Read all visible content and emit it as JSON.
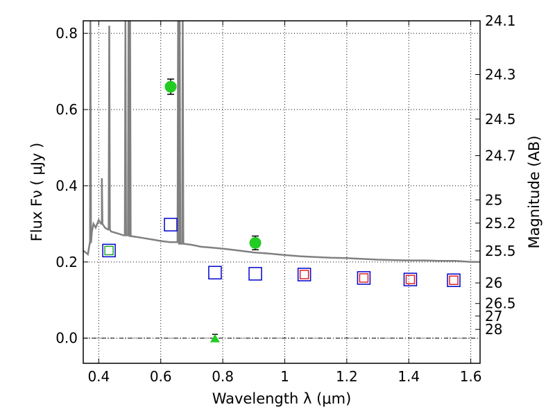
{
  "chart_data": {
    "type": "scatter",
    "xlabel": "Wavelength  λ (μm)",
    "ylabel": "Flux  Fν  ( μJy )",
    "ylabel_right": "Magnitude (AB)",
    "xlim": [
      0.35,
      1.63
    ],
    "ylim": [
      -0.066,
      0.833
    ],
    "x_ticks": [
      0.4,
      0.6,
      0.8,
      1.0,
      1.2,
      1.4,
      1.6
    ],
    "x_tick_labels": [
      "0.4",
      "0.6",
      "0.8",
      "1",
      "1.2",
      "1.4",
      "1.6"
    ],
    "y_ticks": [
      0.0,
      0.2,
      0.4,
      0.6,
      0.8
    ],
    "y_tick_labels": [
      "0.0",
      "0.2",
      "0.4",
      "0.6",
      "0.8"
    ],
    "right_ticks": [
      {
        "label": "24.1",
        "flux": 0.833
      },
      {
        "label": "24.3",
        "flux": 0.692
      },
      {
        "label": "24.5",
        "flux": 0.575
      },
      {
        "label": "24.7",
        "flux": 0.479
      },
      {
        "label": "25",
        "flux": 0.363
      },
      {
        "label": "25.2",
        "flux": 0.302
      },
      {
        "label": "25.5",
        "flux": 0.229
      },
      {
        "label": "26",
        "flux": 0.145
      },
      {
        "label": "26.5",
        "flux": 0.091
      },
      {
        "label": "27",
        "flux": 0.058
      },
      {
        "label": "28",
        "flux": 0.023
      }
    ],
    "grid": true,
    "colors": {
      "model": "#808080",
      "observed": "#22cc22",
      "model_photometry": "#0000cc",
      "inner_box": "#dd2222",
      "inner_box_green": "#22aa22"
    },
    "model_spectrum": {
      "x": [
        0.35,
        0.365,
        0.372,
        0.378,
        0.383,
        0.39,
        0.4,
        0.41,
        0.42,
        0.43,
        0.44,
        0.46,
        0.48,
        0.5,
        0.52,
        0.55,
        0.58,
        0.6,
        0.63,
        0.66,
        0.7,
        0.73,
        0.76,
        0.8,
        0.85,
        0.9,
        0.95,
        1.0,
        1.05,
        1.1,
        1.15,
        1.2,
        1.25,
        1.3,
        1.35,
        1.4,
        1.45,
        1.5,
        1.55,
        1.6,
        1.63
      ],
      "y": [
        0.23,
        0.22,
        0.25,
        0.28,
        0.3,
        0.29,
        0.31,
        0.3,
        0.29,
        0.285,
        0.28,
        0.275,
        0.27,
        0.268,
        0.266,
        0.262,
        0.258,
        0.255,
        0.252,
        0.248,
        0.245,
        0.24,
        0.238,
        0.235,
        0.23,
        0.225,
        0.222,
        0.218,
        0.215,
        0.213,
        0.211,
        0.21,
        0.208,
        0.206,
        0.205,
        0.204,
        0.204,
        0.203,
        0.203,
        0.2,
        0.2
      ],
      "emission_lines": [
        {
          "x": 0.373,
          "peak": 0.85
        },
        {
          "x": 0.41,
          "peak": 0.42
        },
        {
          "x": 0.434,
          "peak": 0.82
        },
        {
          "x": 0.486,
          "peak": 0.85
        },
        {
          "x": 0.496,
          "peak": 0.85
        },
        {
          "x": 0.501,
          "peak": 0.85
        },
        {
          "x": 0.656,
          "peak": 0.85
        },
        {
          "x": 0.661,
          "peak": 0.85
        },
        {
          "x": 0.671,
          "peak": 0.85
        }
      ]
    },
    "observed_points": [
      {
        "x": 0.632,
        "y": 0.66,
        "err": 0.02
      },
      {
        "x": 0.905,
        "y": 0.25,
        "err": 0.018
      }
    ],
    "upper_limits": [
      {
        "x": 0.775,
        "y": 0.0,
        "err": 0.01
      }
    ],
    "model_photometry": [
      {
        "x": 0.433,
        "y": 0.23,
        "inner": "green"
      },
      {
        "x": 0.632,
        "y": 0.298,
        "inner": "none"
      },
      {
        "x": 0.775,
        "y": 0.172,
        "inner": "none"
      },
      {
        "x": 0.905,
        "y": 0.169,
        "inner": "none"
      },
      {
        "x": 1.063,
        "y": 0.167,
        "inner": "red"
      },
      {
        "x": 1.255,
        "y": 0.158,
        "inner": "red"
      },
      {
        "x": 1.405,
        "y": 0.154,
        "inner": "red"
      },
      {
        "x": 1.545,
        "y": 0.152,
        "inner": "red"
      }
    ]
  }
}
